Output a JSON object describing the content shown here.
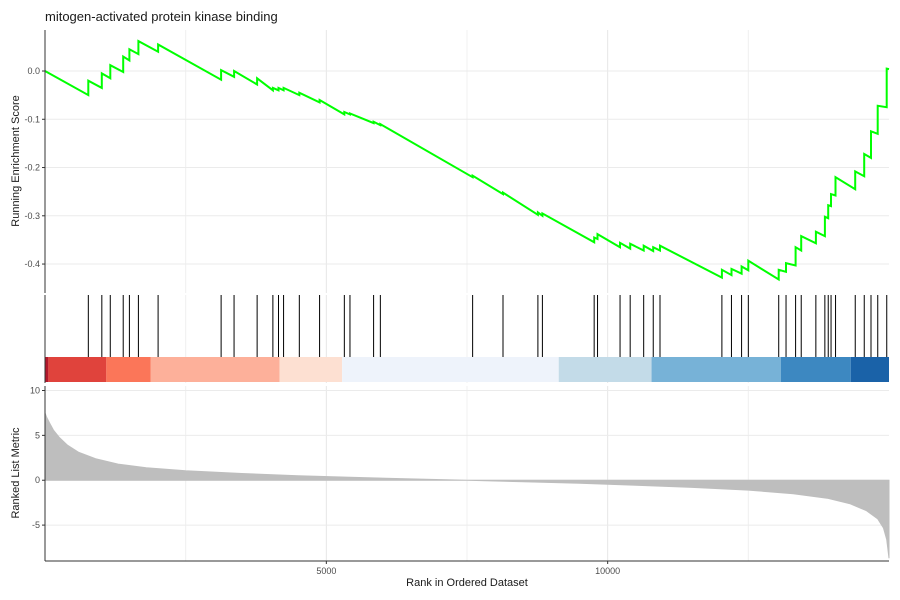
{
  "chart_data": {
    "type": "gsea_enrichment_plot",
    "title": "mitogen-activated protein kinase binding",
    "xlabel": "Rank in Ordered Dataset",
    "xlim": [
      0,
      15000
    ],
    "x_ticks": [
      5000,
      10000
    ],
    "panels": {
      "running_score": {
        "type": "line",
        "ylabel": "Running Enrichment Score",
        "ylim": [
          -0.46,
          0.085
        ],
        "y_ticks": [
          0.0,
          -0.1,
          -0.2,
          -0.3,
          -0.4
        ],
        "y_tick_labels": [
          "0.0",
          "-0.1",
          "-0.2",
          "-0.3",
          "-0.4"
        ],
        "line_color": "#00ff00",
        "hit_positions": [
          770,
          1010,
          1160,
          1390,
          1500,
          1660,
          2010,
          3130,
          3360,
          3770,
          4050,
          4150,
          4240,
          4520,
          4880,
          5320,
          5420,
          5840,
          5960,
          7600,
          8140,
          8760,
          8840,
          9760,
          9820,
          10220,
          10400,
          10640,
          10810,
          10930,
          12030,
          12200,
          12380,
          12500,
          13040,
          13170,
          13340,
          13440,
          13700,
          13860,
          13920,
          13970,
          14050,
          14400,
          14560,
          14680,
          14800,
          14960
        ],
        "points": [
          {
            "x": 0,
            "y": 0.0
          },
          {
            "x": 770,
            "y": -0.05
          },
          {
            "x": 770,
            "y": -0.02
          },
          {
            "x": 1010,
            "y": -0.035
          },
          {
            "x": 1010,
            "y": -0.005
          },
          {
            "x": 1160,
            "y": -0.015
          },
          {
            "x": 1160,
            "y": 0.012
          },
          {
            "x": 1390,
            "y": -0.002
          },
          {
            "x": 1390,
            "y": 0.03
          },
          {
            "x": 1500,
            "y": 0.022
          },
          {
            "x": 1500,
            "y": 0.045
          },
          {
            "x": 1660,
            "y": 0.035
          },
          {
            "x": 1660,
            "y": 0.062
          },
          {
            "x": 2010,
            "y": 0.04
          },
          {
            "x": 2010,
            "y": 0.055
          },
          {
            "x": 3130,
            "y": -0.018
          },
          {
            "x": 3130,
            "y": 0.002
          },
          {
            "x": 3360,
            "y": -0.012
          },
          {
            "x": 3360,
            "y": 0.0
          },
          {
            "x": 3770,
            "y": -0.028
          },
          {
            "x": 3770,
            "y": -0.015
          },
          {
            "x": 4050,
            "y": -0.04
          },
          {
            "x": 4050,
            "y": -0.035
          },
          {
            "x": 4150,
            "y": -0.04
          },
          {
            "x": 4150,
            "y": -0.035
          },
          {
            "x": 4240,
            "y": -0.04
          },
          {
            "x": 4240,
            "y": -0.035
          },
          {
            "x": 4520,
            "y": -0.05
          },
          {
            "x": 4520,
            "y": -0.045
          },
          {
            "x": 4880,
            "y": -0.065
          },
          {
            "x": 4880,
            "y": -0.06
          },
          {
            "x": 5320,
            "y": -0.09
          },
          {
            "x": 5320,
            "y": -0.085
          },
          {
            "x": 5420,
            "y": -0.09
          },
          {
            "x": 5420,
            "y": -0.088
          },
          {
            "x": 5840,
            "y": -0.108
          },
          {
            "x": 5840,
            "y": -0.105
          },
          {
            "x": 5960,
            "y": -0.112
          },
          {
            "x": 5960,
            "y": -0.11
          },
          {
            "x": 7600,
            "y": -0.22
          },
          {
            "x": 7600,
            "y": -0.217
          },
          {
            "x": 8140,
            "y": -0.255
          },
          {
            "x": 8140,
            "y": -0.252
          },
          {
            "x": 8760,
            "y": -0.298
          },
          {
            "x": 8760,
            "y": -0.293
          },
          {
            "x": 8840,
            "y": -0.3
          },
          {
            "x": 8840,
            "y": -0.295
          },
          {
            "x": 9760,
            "y": -0.355
          },
          {
            "x": 9760,
            "y": -0.345
          },
          {
            "x": 9820,
            "y": -0.348
          },
          {
            "x": 9820,
            "y": -0.338
          },
          {
            "x": 10220,
            "y": -0.365
          },
          {
            "x": 10220,
            "y": -0.356
          },
          {
            "x": 10400,
            "y": -0.368
          },
          {
            "x": 10400,
            "y": -0.358
          },
          {
            "x": 10640,
            "y": -0.372
          },
          {
            "x": 10640,
            "y": -0.362
          },
          {
            "x": 10810,
            "y": -0.373
          },
          {
            "x": 10810,
            "y": -0.365
          },
          {
            "x": 10930,
            "y": -0.372
          },
          {
            "x": 10930,
            "y": -0.362
          },
          {
            "x": 12030,
            "y": -0.428
          },
          {
            "x": 12030,
            "y": -0.412
          },
          {
            "x": 12200,
            "y": -0.423
          },
          {
            "x": 12200,
            "y": -0.41
          },
          {
            "x": 12380,
            "y": -0.42
          },
          {
            "x": 12380,
            "y": -0.405
          },
          {
            "x": 12500,
            "y": -0.413
          },
          {
            "x": 12500,
            "y": -0.393
          },
          {
            "x": 13040,
            "y": -0.432
          },
          {
            "x": 13040,
            "y": -0.412
          },
          {
            "x": 13170,
            "y": -0.416
          },
          {
            "x": 13170,
            "y": -0.398
          },
          {
            "x": 13340,
            "y": -0.403
          },
          {
            "x": 13340,
            "y": -0.365
          },
          {
            "x": 13440,
            "y": -0.372
          },
          {
            "x": 13440,
            "y": -0.342
          },
          {
            "x": 13700,
            "y": -0.357
          },
          {
            "x": 13700,
            "y": -0.333
          },
          {
            "x": 13860,
            "y": -0.342
          },
          {
            "x": 13860,
            "y": -0.302
          },
          {
            "x": 13920,
            "y": -0.305
          },
          {
            "x": 13920,
            "y": -0.278
          },
          {
            "x": 13970,
            "y": -0.28
          },
          {
            "x": 13970,
            "y": -0.255
          },
          {
            "x": 14050,
            "y": -0.258
          },
          {
            "x": 14050,
            "y": -0.22
          },
          {
            "x": 14400,
            "y": -0.245
          },
          {
            "x": 14400,
            "y": -0.208
          },
          {
            "x": 14560,
            "y": -0.218
          },
          {
            "x": 14560,
            "y": -0.172
          },
          {
            "x": 14680,
            "y": -0.18
          },
          {
            "x": 14680,
            "y": -0.125
          },
          {
            "x": 14800,
            "y": -0.13
          },
          {
            "x": 14800,
            "y": -0.072
          },
          {
            "x": 14960,
            "y": -0.075
          },
          {
            "x": 14960,
            "y": 0.005
          },
          {
            "x": 15000,
            "y": 0.004
          }
        ]
      },
      "ranked_metric": {
        "type": "area",
        "ylabel": "Ranked List Metric",
        "ylim": [
          -9,
          10.5
        ],
        "y_ticks": [
          10,
          5,
          0,
          -5
        ],
        "y_tick_labels": [
          "10",
          "5",
          "0",
          "-5"
        ],
        "fill_color": "#bebebe",
        "curve": [
          {
            "x": 0,
            "y": 7.5
          },
          {
            "x": 30,
            "y": 7.0
          },
          {
            "x": 80,
            "y": 6.4
          },
          {
            "x": 150,
            "y": 5.6
          },
          {
            "x": 250,
            "y": 4.8
          },
          {
            "x": 400,
            "y": 3.9
          },
          {
            "x": 600,
            "y": 3.1
          },
          {
            "x": 900,
            "y": 2.4
          },
          {
            "x": 1300,
            "y": 1.8
          },
          {
            "x": 1800,
            "y": 1.4
          },
          {
            "x": 2500,
            "y": 1.05
          },
          {
            "x": 3500,
            "y": 0.75
          },
          {
            "x": 4500,
            "y": 0.5
          },
          {
            "x": 5500,
            "y": 0.32
          },
          {
            "x": 6500,
            "y": 0.15
          },
          {
            "x": 7400,
            "y": 0.02
          },
          {
            "x": 7500,
            "y": 0.0
          },
          {
            "x": 8500,
            "y": -0.17
          },
          {
            "x": 9500,
            "y": -0.33
          },
          {
            "x": 10500,
            "y": -0.55
          },
          {
            "x": 11500,
            "y": -0.8
          },
          {
            "x": 12500,
            "y": -1.1
          },
          {
            "x": 13300,
            "y": -1.5
          },
          {
            "x": 13900,
            "y": -2.0
          },
          {
            "x": 14300,
            "y": -2.6
          },
          {
            "x": 14600,
            "y": -3.4
          },
          {
            "x": 14800,
            "y": -4.3
          },
          {
            "x": 14900,
            "y": -5.3
          },
          {
            "x": 14960,
            "y": -6.6
          },
          {
            "x": 15000,
            "y": -8.7
          }
        ]
      },
      "rank_color_bar": {
        "type": "heatmap",
        "segments": [
          {
            "x0": 0,
            "x1": 60,
            "color": "#b2182b"
          },
          {
            "x0": 60,
            "x1": 1090,
            "color": "#e0433c"
          },
          {
            "x0": 1090,
            "x1": 1880,
            "color": "#fb7659"
          },
          {
            "x0": 1880,
            "x1": 4170,
            "color": "#fdb09a"
          },
          {
            "x0": 4170,
            "x1": 5280,
            "color": "#fde0d2"
          },
          {
            "x0": 5280,
            "x1": 9130,
            "color": "#eef3fb"
          },
          {
            "x0": 9130,
            "x1": 10780,
            "color": "#c3dbe8"
          },
          {
            "x0": 10780,
            "x1": 13080,
            "color": "#77b2d7"
          },
          {
            "x0": 13080,
            "x1": 14320,
            "color": "#3d88c1"
          },
          {
            "x0": 14320,
            "x1": 15000,
            "color": "#1a62a8"
          }
        ]
      }
    }
  }
}
